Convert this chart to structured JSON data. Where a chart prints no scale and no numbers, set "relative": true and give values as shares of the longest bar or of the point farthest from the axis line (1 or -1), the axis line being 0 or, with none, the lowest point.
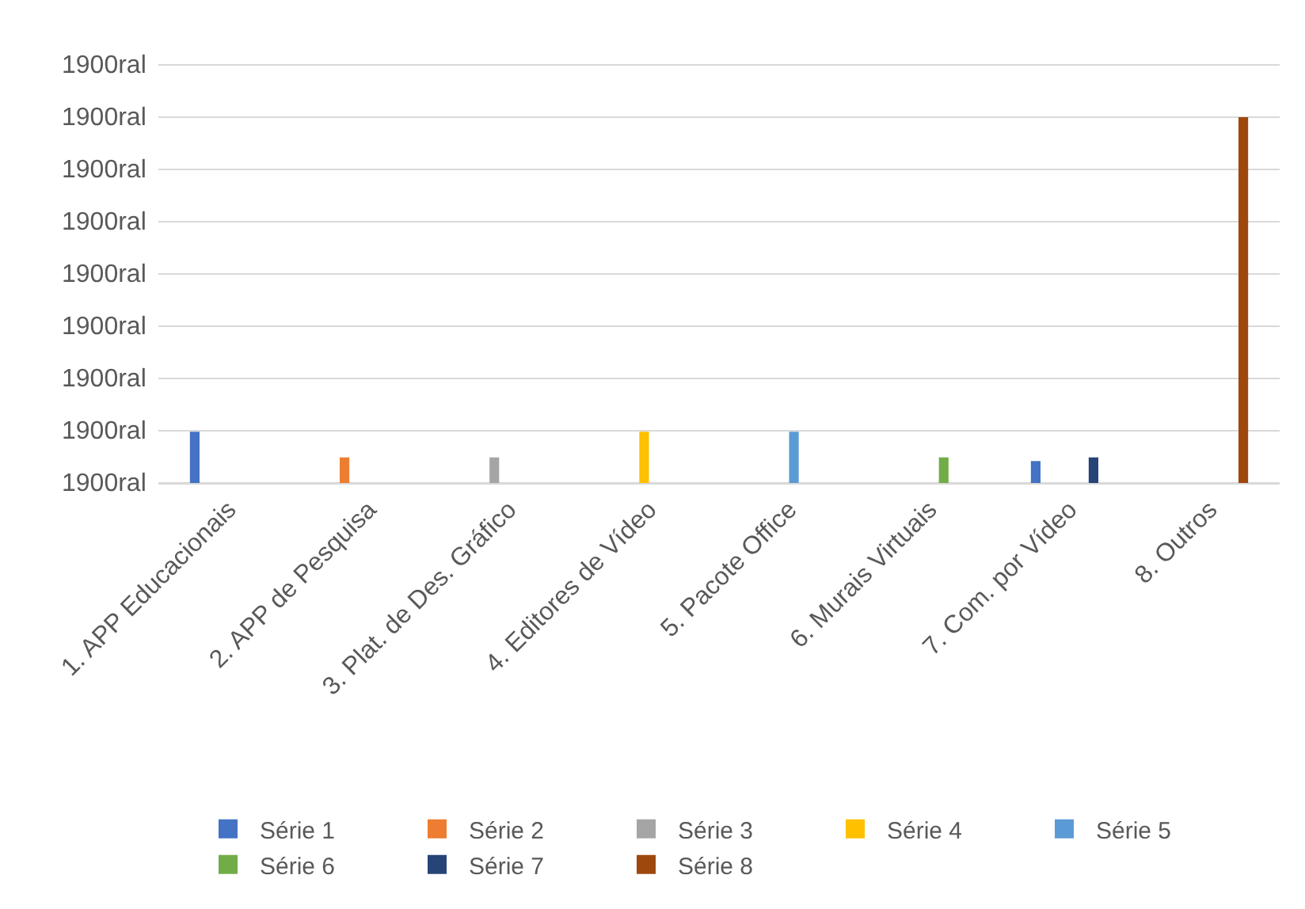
{
  "chart_data": {
    "type": "bar",
    "categories": [
      "1. APP Educacionais",
      "2. APP de Pesquisa",
      "3. Plat. de Des. Gráfico",
      "4. Editores de Vídeo",
      "5. Pacote Office",
      "6. Murais Virtuais",
      "7. Com. por Vídeo",
      "8. Outros"
    ],
    "series": [
      {
        "name": "Série 1",
        "color": "#4472c4",
        "values": [
          0.14,
          null,
          null,
          null,
          null,
          null,
          0.06,
          null
        ]
      },
      {
        "name": "Série 2",
        "color": "#ed7d31",
        "values": [
          null,
          0.07,
          null,
          null,
          null,
          null,
          null,
          null
        ]
      },
      {
        "name": "Série 3",
        "color": "#a5a5a5",
        "values": [
          null,
          null,
          0.07,
          null,
          null,
          null,
          null,
          null
        ]
      },
      {
        "name": "Série 4",
        "color": "#ffc000",
        "values": [
          null,
          null,
          null,
          0.14,
          null,
          null,
          null,
          null
        ]
      },
      {
        "name": "Série 5",
        "color": "#5b9bd5",
        "values": [
          null,
          null,
          null,
          null,
          0.14,
          null,
          null,
          null
        ]
      },
      {
        "name": "Série 6",
        "color": "#70ad47",
        "values": [
          null,
          null,
          null,
          null,
          null,
          0.07,
          null,
          null
        ]
      },
      {
        "name": "Série 7",
        "color": "#264478",
        "values": [
          null,
          null,
          null,
          null,
          null,
          null,
          0.07,
          null
        ]
      },
      {
        "name": "Série 8",
        "color": "#9e480e",
        "values": [
          null,
          null,
          null,
          null,
          null,
          null,
          null,
          1
        ]
      }
    ],
    "relative": true,
    "annotations": [
      "1900ral",
      "1900ral",
      "1900ral",
      "1900ral",
      "1900ral",
      "1900ral",
      "1900ral",
      "1900ral",
      "1900ral"
    ],
    "grid": "y",
    "legend": "bottom"
  }
}
